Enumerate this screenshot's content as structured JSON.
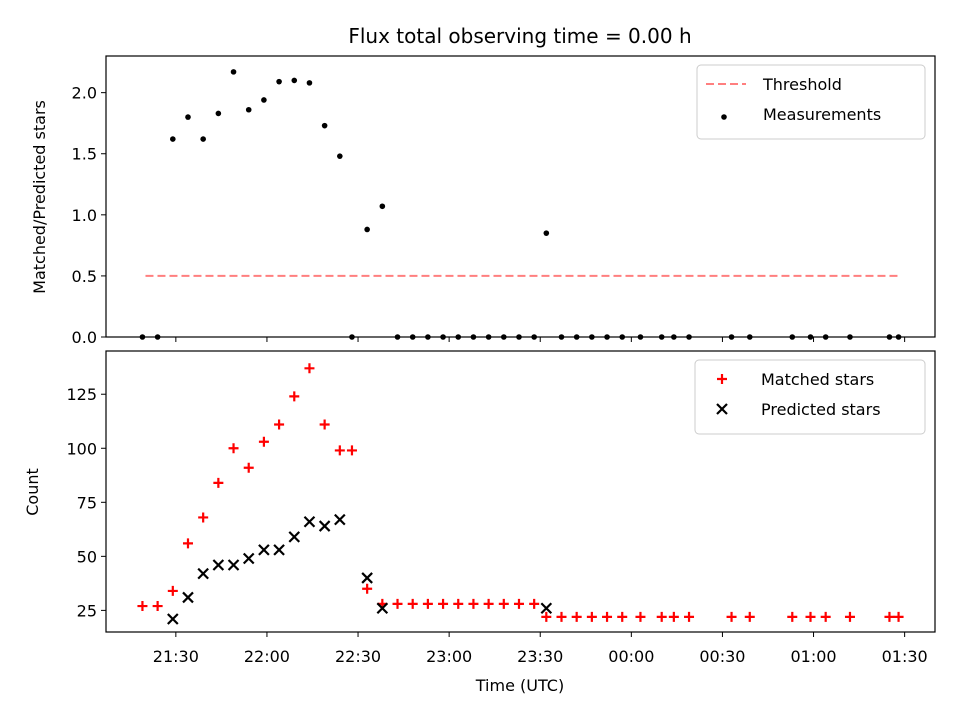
{
  "chart_data": [
    {
      "type": "scatter",
      "title": "Flux total observing time = 0.00 h",
      "ylabel": "Matched/Predicted stars",
      "xlabel": "",
      "ylim": [
        0,
        2.3
      ],
      "xlim": [
        "21:07",
        "01:40"
      ],
      "yticks": [
        0.0,
        0.5,
        1.0,
        1.5,
        2.0
      ],
      "ytick_labels": [
        "0.0",
        "0.5",
        "1.0",
        "1.5",
        "2.0"
      ],
      "xticks": [
        "21:30",
        "22:00",
        "22:30",
        "23:00",
        "23:30",
        "00:00",
        "00:30",
        "01:00",
        "01:30"
      ],
      "grid": false,
      "legend_position": "top-right",
      "threshold": {
        "name": "Threshold",
        "color": "#ff7f7f",
        "style": "dashed",
        "x": [
          "21:20",
          "01:28"
        ],
        "y": 0.5
      },
      "series": [
        {
          "name": "Measurements",
          "marker": "dot",
          "color": "#000000",
          "points": [
            {
              "x": "21:19",
              "y": 0.0
            },
            {
              "x": "21:24",
              "y": 0.0
            },
            {
              "x": "21:29",
              "y": 1.62
            },
            {
              "x": "21:34",
              "y": 1.8
            },
            {
              "x": "21:39",
              "y": 1.62
            },
            {
              "x": "21:44",
              "y": 1.83
            },
            {
              "x": "21:49",
              "y": 2.17
            },
            {
              "x": "21:54",
              "y": 1.86
            },
            {
              "x": "21:59",
              "y": 1.94
            },
            {
              "x": "22:04",
              "y": 2.09
            },
            {
              "x": "22:09",
              "y": 2.1
            },
            {
              "x": "22:14",
              "y": 2.08
            },
            {
              "x": "22:19",
              "y": 1.73
            },
            {
              "x": "22:24",
              "y": 1.48
            },
            {
              "x": "22:28",
              "y": 0.0
            },
            {
              "x": "22:33",
              "y": 0.88
            },
            {
              "x": "22:38",
              "y": 1.07
            },
            {
              "x": "22:43",
              "y": 0.0
            },
            {
              "x": "22:48",
              "y": 0.0
            },
            {
              "x": "22:53",
              "y": 0.0
            },
            {
              "x": "22:58",
              "y": 0.0
            },
            {
              "x": "23:03",
              "y": 0.0
            },
            {
              "x": "23:08",
              "y": 0.0
            },
            {
              "x": "23:13",
              "y": 0.0
            },
            {
              "x": "23:18",
              "y": 0.0
            },
            {
              "x": "23:23",
              "y": 0.0
            },
            {
              "x": "23:28",
              "y": 0.0
            },
            {
              "x": "23:32",
              "y": 0.85
            },
            {
              "x": "23:37",
              "y": 0.0
            },
            {
              "x": "23:42",
              "y": 0.0
            },
            {
              "x": "23:47",
              "y": 0.0
            },
            {
              "x": "23:52",
              "y": 0.0
            },
            {
              "x": "23:57",
              "y": 0.0
            },
            {
              "x": "00:03",
              "y": 0.0
            },
            {
              "x": "00:10",
              "y": 0.0
            },
            {
              "x": "00:14",
              "y": 0.0
            },
            {
              "x": "00:19",
              "y": 0.0
            },
            {
              "x": "00:33",
              "y": 0.0
            },
            {
              "x": "00:39",
              "y": 0.0
            },
            {
              "x": "00:53",
              "y": 0.0
            },
            {
              "x": "00:59",
              "y": 0.0
            },
            {
              "x": "01:04",
              "y": 0.0
            },
            {
              "x": "01:12",
              "y": 0.0
            },
            {
              "x": "01:25",
              "y": 0.0
            },
            {
              "x": "01:28",
              "y": 0.0
            }
          ]
        }
      ]
    },
    {
      "type": "scatter",
      "title": "",
      "ylabel": "Count",
      "xlabel": "Time (UTC)",
      "ylim": [
        15,
        145
      ],
      "xlim": [
        "21:07",
        "01:40"
      ],
      "yticks": [
        25,
        50,
        75,
        100,
        125
      ],
      "ytick_labels": [
        "25",
        "50",
        "75",
        "100",
        "125"
      ],
      "xticks": [
        "21:30",
        "22:00",
        "22:30",
        "23:00",
        "23:30",
        "00:00",
        "00:30",
        "01:00",
        "01:30"
      ],
      "xtick_labels": [
        "21:30",
        "22:00",
        "22:30",
        "23:00",
        "23:30",
        "00:00",
        "00:30",
        "01:00",
        "01:30"
      ],
      "grid": false,
      "legend_position": "top-right",
      "series": [
        {
          "name": "Matched stars",
          "marker": "plus",
          "color": "#ff0000",
          "points": [
            {
              "x": "21:19",
              "y": 27
            },
            {
              "x": "21:24",
              "y": 27
            },
            {
              "x": "21:29",
              "y": 34
            },
            {
              "x": "21:34",
              "y": 56
            },
            {
              "x": "21:39",
              "y": 68
            },
            {
              "x": "21:44",
              "y": 84
            },
            {
              "x": "21:49",
              "y": 100
            },
            {
              "x": "21:54",
              "y": 91
            },
            {
              "x": "21:59",
              "y": 103
            },
            {
              "x": "22:04",
              "y": 111
            },
            {
              "x": "22:09",
              "y": 124
            },
            {
              "x": "22:14",
              "y": 137
            },
            {
              "x": "22:19",
              "y": 111
            },
            {
              "x": "22:24",
              "y": 99
            },
            {
              "x": "22:28",
              "y": 99
            },
            {
              "x": "22:33",
              "y": 35
            },
            {
              "x": "22:38",
              "y": 28
            },
            {
              "x": "22:43",
              "y": 28
            },
            {
              "x": "22:48",
              "y": 28
            },
            {
              "x": "22:53",
              "y": 28
            },
            {
              "x": "22:58",
              "y": 28
            },
            {
              "x": "23:03",
              "y": 28
            },
            {
              "x": "23:08",
              "y": 28
            },
            {
              "x": "23:13",
              "y": 28
            },
            {
              "x": "23:18",
              "y": 28
            },
            {
              "x": "23:23",
              "y": 28
            },
            {
              "x": "23:28",
              "y": 28
            },
            {
              "x": "23:32",
              "y": 22
            },
            {
              "x": "23:37",
              "y": 22
            },
            {
              "x": "23:42",
              "y": 22
            },
            {
              "x": "23:47",
              "y": 22
            },
            {
              "x": "23:52",
              "y": 22
            },
            {
              "x": "23:57",
              "y": 22
            },
            {
              "x": "00:03",
              "y": 22
            },
            {
              "x": "00:10",
              "y": 22
            },
            {
              "x": "00:14",
              "y": 22
            },
            {
              "x": "00:19",
              "y": 22
            },
            {
              "x": "00:33",
              "y": 22
            },
            {
              "x": "00:39",
              "y": 22
            },
            {
              "x": "00:53",
              "y": 22
            },
            {
              "x": "00:59",
              "y": 22
            },
            {
              "x": "01:04",
              "y": 22
            },
            {
              "x": "01:12",
              "y": 22
            },
            {
              "x": "01:25",
              "y": 22
            },
            {
              "x": "01:28",
              "y": 22
            }
          ]
        },
        {
          "name": "Predicted stars",
          "marker": "x",
          "color": "#000000",
          "points": [
            {
              "x": "21:29",
              "y": 21
            },
            {
              "x": "21:34",
              "y": 31
            },
            {
              "x": "21:39",
              "y": 42
            },
            {
              "x": "21:44",
              "y": 46
            },
            {
              "x": "21:49",
              "y": 46
            },
            {
              "x": "21:54",
              "y": 49
            },
            {
              "x": "21:59",
              "y": 53
            },
            {
              "x": "22:04",
              "y": 53
            },
            {
              "x": "22:09",
              "y": 59
            },
            {
              "x": "22:14",
              "y": 66
            },
            {
              "x": "22:19",
              "y": 64
            },
            {
              "x": "22:24",
              "y": 67
            },
            {
              "x": "22:33",
              "y": 40
            },
            {
              "x": "22:38",
              "y": 26
            },
            {
              "x": "23:32",
              "y": 26
            }
          ]
        }
      ]
    }
  ]
}
